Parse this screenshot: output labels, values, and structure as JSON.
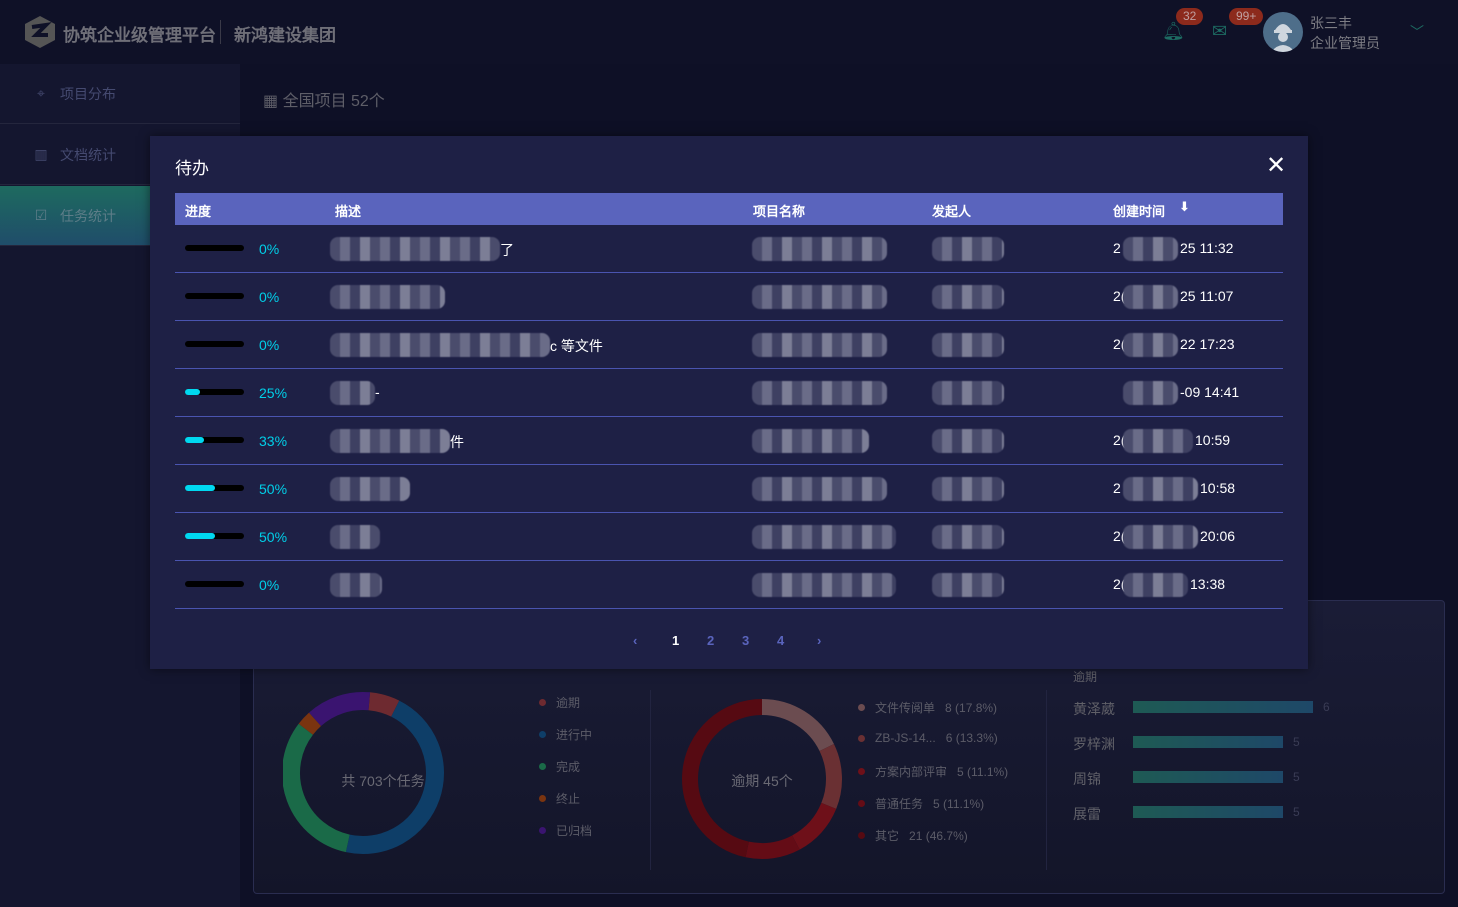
{
  "header": {
    "brand": "协筑企业级管理平台",
    "org": "新鸿建设集团",
    "notifications_badge": "32",
    "messages_badge": "99+",
    "user_name": "张三丰",
    "user_role": "企业管理员"
  },
  "sidebar": {
    "items": [
      {
        "label": "项目分布",
        "icon": "map-pin-icon"
      },
      {
        "label": "文档统计",
        "icon": "bar-chart-icon"
      },
      {
        "label": "任务统计",
        "icon": "checkbox-icon",
        "active": true
      }
    ]
  },
  "main": {
    "title": "全国项目 52个"
  },
  "task_donut": {
    "center": "共 703个任务",
    "legend": [
      "逾期",
      "进行中",
      "完成",
      "终止",
      "已归档"
    ],
    "colors": [
      "#6e2a30",
      "#0e3e68",
      "#1a6a48",
      "#7a3410",
      "#3a1470"
    ],
    "shares": [
      0.06,
      0.46,
      0.32,
      0.03,
      0.13
    ]
  },
  "overdue_donut": {
    "center": "逾期 45个",
    "items": [
      {
        "label": "文件传阅单",
        "value": "8 (17.8%)",
        "share": 17.8,
        "color": "#6b4c50"
      },
      {
        "label": "ZB-JS-14...",
        "value": "6 (13.3%)",
        "share": 13.3,
        "color": "#6a3033"
      },
      {
        "label": "方案内部评审",
        "value": "5 (11.1%)",
        "share": 11.1,
        "color": "#6e1019"
      },
      {
        "label": "普通任务",
        "value": "5 (11.1%)",
        "share": 11.1,
        "color": "#640c16"
      },
      {
        "label": "其它",
        "value": "21 (46.7%)",
        "share": 46.7,
        "color": "#560a12"
      }
    ]
  },
  "overdue_ranking": {
    "title": "逾期",
    "items": [
      {
        "name": "黄泽葳",
        "value": 6
      },
      {
        "name": "罗梓渊",
        "value": 5
      },
      {
        "name": "周锦",
        "value": 5
      },
      {
        "name": "展雷",
        "value": 5
      }
    ]
  },
  "modal": {
    "title": "待办",
    "columns": [
      "进度",
      "描述",
      "项目名称",
      "发起人",
      "创建时间"
    ],
    "rows": [
      {
        "progress": 0,
        "progress_label": "0%",
        "desc_suffix": "了",
        "time_prefix": "2",
        "time_suffix": "25 11:32"
      },
      {
        "progress": 0,
        "progress_label": "0%",
        "desc_suffix": "",
        "time_prefix": "2(",
        "time_suffix": "25 11:07"
      },
      {
        "progress": 0,
        "progress_label": "0%",
        "desc_suffix": "c 等文件",
        "time_prefix": "2(",
        "time_suffix": "22 17:23"
      },
      {
        "progress": 25,
        "progress_label": "25%",
        "desc_suffix": "-",
        "time_prefix": "",
        "time_suffix": "-09 14:41"
      },
      {
        "progress": 33,
        "progress_label": "33%",
        "desc_suffix": "件",
        "time_prefix": "2(",
        "time_suffix": "10:59"
      },
      {
        "progress": 50,
        "progress_label": "50%",
        "desc_suffix": "",
        "time_prefix": "2",
        "time_suffix": "10:58"
      },
      {
        "progress": 50,
        "progress_label": "50%",
        "desc_suffix": "",
        "time_prefix": "2(",
        "time_suffix": "20:06"
      },
      {
        "progress": 0,
        "progress_label": "0%",
        "desc_suffix": "",
        "time_prefix": "2(",
        "time_suffix": "13:38"
      }
    ],
    "pagination": {
      "prev": "‹",
      "pages": [
        "1",
        "2",
        "3",
        "4"
      ],
      "current": "1",
      "next": "›"
    }
  }
}
